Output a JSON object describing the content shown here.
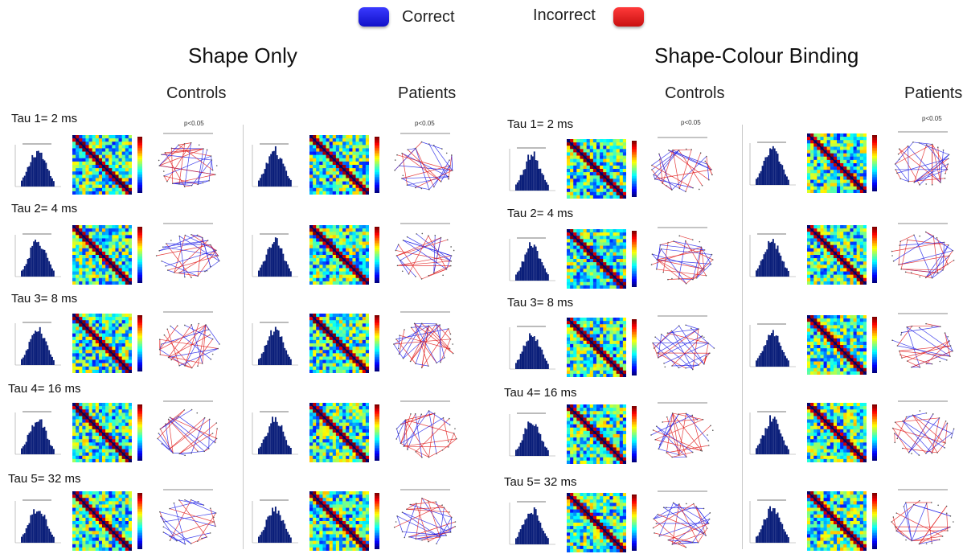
{
  "legend": {
    "correct_label": "Correct",
    "incorrect_label": "Incorrect",
    "correct_color": "#1f1fe6",
    "incorrect_color": "#e01b1b"
  },
  "panels": [
    {
      "title": "Shape Only",
      "groups": [
        {
          "title": "Controls",
          "pvalue": "p<0.05"
        },
        {
          "title": "Patients",
          "pvalue": "p<0.05"
        }
      ]
    },
    {
      "title": "Shape-Colour Binding",
      "groups": [
        {
          "title": "Controls",
          "pvalue": "p<0.05"
        },
        {
          "title": "Patients",
          "pvalue": "p<0.05"
        }
      ]
    }
  ],
  "tau_labels": [
    "Tau 1= 2 ms",
    "Tau 2= 4 ms",
    "Tau 3= 8 ms",
    "Tau 4= 16 ms",
    "Tau 5= 32 ms"
  ],
  "colors": {
    "histogram": "#0b1f7a",
    "divider": "#c9c9c9"
  },
  "icons": {
    "histogram": "histogram-icon",
    "matrix": "correlation-matrix-icon",
    "colorbar": "colorbar-icon",
    "network": "network-graph-icon"
  }
}
